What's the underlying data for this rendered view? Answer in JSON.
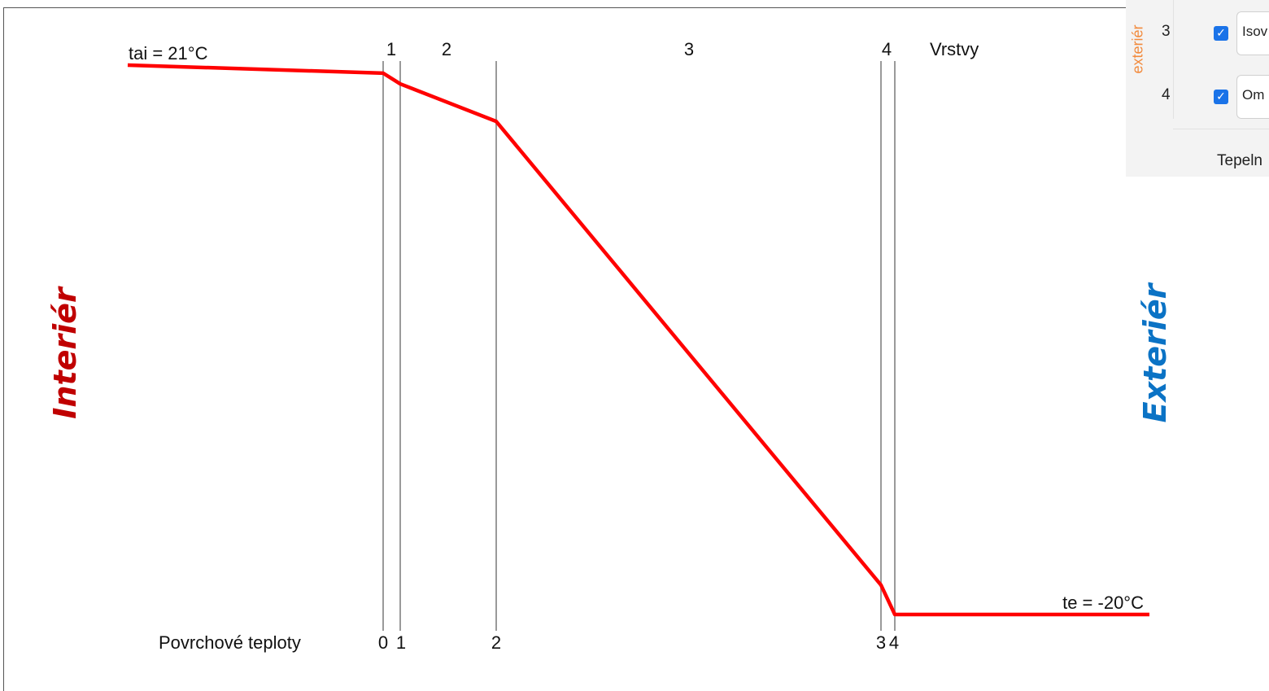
{
  "colors": {
    "profile_line": "#ff0000",
    "boundary_line": "#9a9a9a",
    "interior_label": "#c00000",
    "exterior_label": "#0b73c5",
    "panel_side_text": "#f28a3c",
    "checkbox": "#1a73e8"
  },
  "labels": {
    "interior": "Interiér",
    "exterior": "Exteriér"
  },
  "chart_data": {
    "type": "line",
    "title": "",
    "xlabel": "",
    "ylabel": "",
    "ylim": [
      -20,
      21
    ],
    "interior_temp_label": "tai = 21°C",
    "exterior_temp_label": "te = -20°C",
    "layers_caption": "Vrstvy",
    "surface_caption": "Povrchové teploty",
    "layer_labels": [
      "1",
      "2",
      "3",
      "4"
    ],
    "boundary_labels": [
      "0",
      "1",
      "2",
      "3",
      "4"
    ],
    "series": [
      {
        "x": [
          "interior",
          "0",
          "1",
          "2",
          "3",
          "4",
          "exterior"
        ],
        "values": [
          21,
          20.4,
          19.6,
          16.8,
          -17.8,
          -20,
          -20
        ]
      }
    ],
    "legend": "none",
    "grid": false
  },
  "panel": {
    "side_tab": "exteriér",
    "rows": [
      {
        "number": "3",
        "checked": true,
        "name": "Isov"
      },
      {
        "number": "4",
        "checked": true,
        "name": "Om"
      }
    ],
    "footer": "Tepeln"
  }
}
